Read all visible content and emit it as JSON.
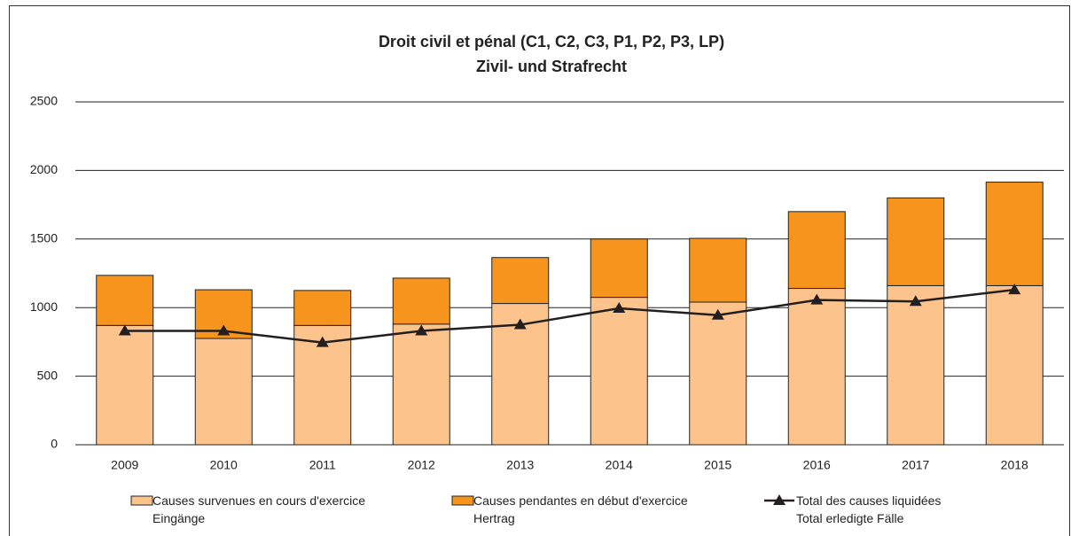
{
  "chart_data": {
    "type": "bar",
    "stacked": true,
    "title": "Droit civil et pénal (C1, C2, C3, P1, P2, P3, LP)",
    "subtitle": "Zivil- und Strafrecht",
    "categories": [
      "2009",
      "2010",
      "2011",
      "2012",
      "2013",
      "2014",
      "2015",
      "2016",
      "2017",
      "2018"
    ],
    "series": [
      {
        "name": "Causes survenues en cours d'exercice\nEingänge",
        "color": "#fcc48c",
        "type": "bar",
        "values": [
          870,
          775,
          870,
          880,
          1030,
          1075,
          1040,
          1140,
          1160,
          1160
        ]
      },
      {
        "name": "Causes pendantes en début d'exercice\nHertrag",
        "color": "#f7941d",
        "type": "bar",
        "values": [
          365,
          355,
          255,
          335,
          335,
          425,
          465,
          560,
          640,
          755
        ]
      },
      {
        "name": "Total des causes liquidées\nTotal erledigte Fälle",
        "color": "#231f20",
        "type": "line",
        "values": [
          830,
          830,
          745,
          830,
          875,
          995,
          945,
          1055,
          1045,
          1130
        ]
      }
    ],
    "ylim": [
      0,
      2500
    ],
    "yticks": [
      0,
      500,
      1000,
      1500,
      2000,
      2500
    ],
    "grid": true,
    "legend": "bottom"
  }
}
